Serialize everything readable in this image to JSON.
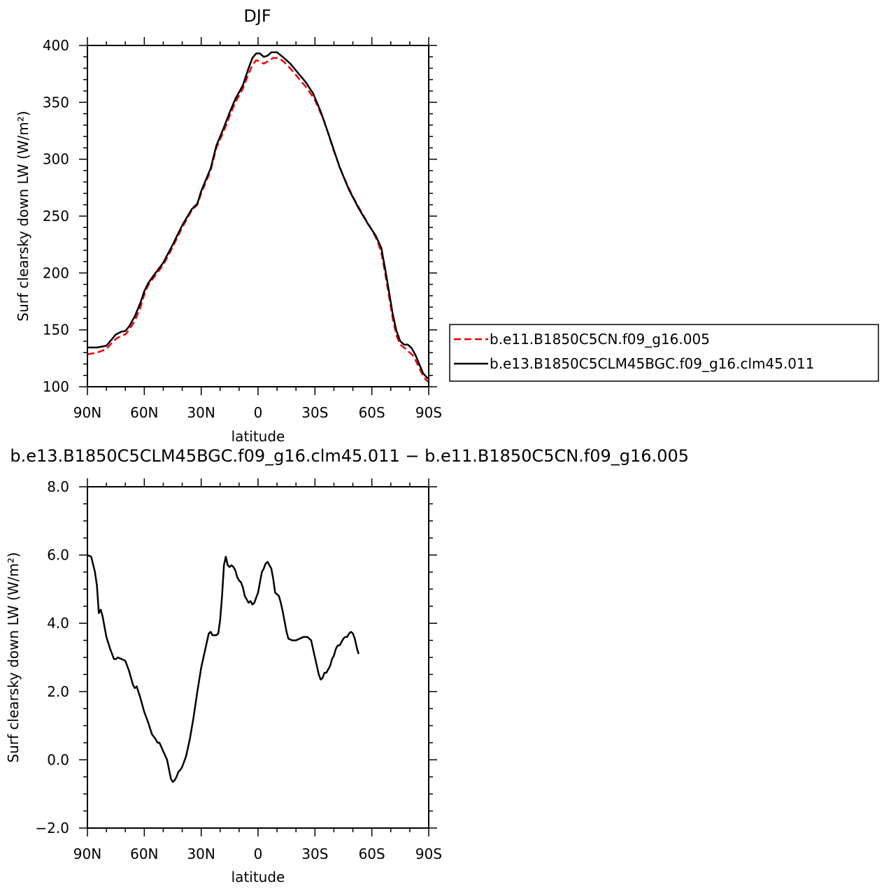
{
  "chart_data": [
    {
      "type": "line",
      "title": "DJF",
      "xlabel": "latitude",
      "ylabel": "Surf clearsky down LW (W/m²)",
      "xlim": [
        -90,
        90
      ],
      "ylim": [
        100,
        400
      ],
      "x_ticks": [
        {
          "value": -90,
          "label": "90N"
        },
        {
          "value": -60,
          "label": "60N"
        },
        {
          "value": -30,
          "label": "30N"
        },
        {
          "value": 0,
          "label": "0"
        },
        {
          "value": 30,
          "label": "30S"
        },
        {
          "value": 60,
          "label": "60S"
        },
        {
          "value": 90,
          "label": "90S"
        }
      ],
      "y_ticks": [
        {
          "value": 100,
          "label": "100"
        },
        {
          "value": 150,
          "label": "150"
        },
        {
          "value": 200,
          "label": "200"
        },
        {
          "value": 250,
          "label": "250"
        },
        {
          "value": 300,
          "label": "300"
        },
        {
          "value": 350,
          "label": "350"
        },
        {
          "value": 400,
          "label": "400"
        }
      ],
      "legend": {
        "placement": "right"
      },
      "series": [
        {
          "name": "b.e11.B1850C5CN.f09_g16.005",
          "color": "#ee0000",
          "dash": "dashed",
          "points": [
            [
              -90,
              128.5
            ],
            [
              -85,
              130
            ],
            [
              -80,
              133
            ],
            [
              -78,
              137
            ],
            [
              -75,
              142
            ],
            [
              -72,
              145
            ],
            [
              -70,
              146
            ],
            [
              -68,
              150
            ],
            [
              -65,
              158
            ],
            [
              -62,
              170
            ],
            [
              -60,
              181
            ],
            [
              -58,
              189
            ],
            [
              -55,
              196
            ],
            [
              -50,
              207
            ],
            [
              -45,
              223
            ],
            [
              -40,
              240
            ],
            [
              -35,
              255
            ],
            [
              -32,
              260
            ],
            [
              -30,
              270
            ],
            [
              -25,
              290
            ],
            [
              -22,
              310
            ],
            [
              -18,
              325
            ],
            [
              -15,
              338
            ],
            [
              -12,
              350
            ],
            [
              -8,
              362
            ],
            [
              -5,
              375
            ],
            [
              -3,
              383
            ],
            [
              -1,
              387
            ],
            [
              1,
              386
            ],
            [
              3,
              384
            ],
            [
              5,
              386
            ],
            [
              8,
              389
            ],
            [
              11,
              389
            ],
            [
              14,
              385
            ],
            [
              18,
              378
            ],
            [
              22,
              370
            ],
            [
              26,
              362
            ],
            [
              30,
              352
            ],
            [
              35,
              333
            ],
            [
              40,
              307
            ],
            [
              45,
              285
            ],
            [
              50,
              267
            ],
            [
              55,
              252
            ],
            [
              60,
              238
            ],
            [
              63,
              228
            ],
            [
              65,
              218
            ],
            [
              67,
              200
            ],
            [
              69,
              180
            ],
            [
              71,
              160
            ],
            [
              73,
              145
            ],
            [
              75,
              137
            ],
            [
              78,
              133
            ],
            [
              80,
              130
            ],
            [
              82,
              127
            ],
            [
              84,
              120
            ],
            [
              86,
              113
            ],
            [
              88,
              107
            ],
            [
              90,
              104
            ]
          ]
        },
        {
          "name": "b.e13.B1850C5CLM45BGC.f09_g16.clm45.011",
          "color": "#000000",
          "dash": "solid",
          "points": [
            [
              -90,
              134.5
            ],
            [
              -85,
              134.5
            ],
            [
              -80,
              136
            ],
            [
              -78,
              140
            ],
            [
              -75,
              146
            ],
            [
              -72,
              148.5
            ],
            [
              -70,
              149
            ],
            [
              -68,
              153
            ],
            [
              -65,
              162
            ],
            [
              -62,
              174
            ],
            [
              -60,
              184
            ],
            [
              -58,
              191
            ],
            [
              -55,
              198
            ],
            [
              -50,
              209
            ],
            [
              -45,
              225
            ],
            [
              -40,
              242
            ],
            [
              -35,
              256
            ],
            [
              -32,
              261
            ],
            [
              -30,
              272
            ],
            [
              -25,
              292
            ],
            [
              -22,
              312
            ],
            [
              -18,
              328
            ],
            [
              -15,
              341
            ],
            [
              -12,
              353
            ],
            [
              -8,
              365
            ],
            [
              -5,
              380
            ],
            [
              -3,
              389
            ],
            [
              -1,
              393
            ],
            [
              1,
              393
            ],
            [
              3,
              390
            ],
            [
              5,
              391
            ],
            [
              7,
              394
            ],
            [
              10,
              394
            ],
            [
              13,
              390
            ],
            [
              17,
              384
            ],
            [
              21,
              376
            ],
            [
              25,
              368
            ],
            [
              29,
              358
            ],
            [
              33,
              342
            ],
            [
              38,
              318
            ],
            [
              43,
              293
            ],
            [
              48,
              273
            ],
            [
              53,
              257
            ],
            [
              58,
              243
            ],
            [
              62,
              233
            ],
            [
              65,
              222
            ],
            [
              67,
              204
            ],
            [
              69,
              184
            ],
            [
              71,
              164
            ],
            [
              73,
              149
            ],
            [
              75,
              140
            ],
            [
              77,
              137
            ],
            [
              79,
              137
            ],
            [
              81,
              134
            ],
            [
              83,
              128
            ],
            [
              85,
              120
            ],
            [
              87,
              112
            ],
            [
              89,
              108
            ],
            [
              90,
              107
            ]
          ]
        }
      ]
    },
    {
      "type": "line",
      "title": "b.e13.B1850C5CLM45BGC.f09_g16.clm45.011 − b.e11.B1850C5CN.f09_g16.005",
      "xlabel": "latitude",
      "ylabel": "Surf clearsky down LW (W/m²)",
      "xlim": [
        -90,
        90
      ],
      "ylim": [
        -2.0,
        8.0
      ],
      "x_ticks": [
        {
          "value": -90,
          "label": "90N"
        },
        {
          "value": -60,
          "label": "60N"
        },
        {
          "value": -30,
          "label": "30N"
        },
        {
          "value": 0,
          "label": "0"
        },
        {
          "value": 30,
          "label": "30S"
        },
        {
          "value": 60,
          "label": "60S"
        },
        {
          "value": 90,
          "label": "90S"
        }
      ],
      "y_ticks": [
        {
          "value": -2.0,
          "label": "−2.0"
        },
        {
          "value": 0.0,
          "label": "0.0"
        },
        {
          "value": 2.0,
          "label": "2.0"
        },
        {
          "value": 4.0,
          "label": "4.0"
        },
        {
          "value": 6.0,
          "label": "6.0"
        },
        {
          "value": 8.0,
          "label": "8.0"
        }
      ],
      "series": [
        {
          "color": "#000000",
          "dash": "solid",
          "points": [
            [
              -90,
              6.0
            ],
            [
              -88,
              5.95
            ],
            [
              -86,
              5.5
            ],
            [
              -85,
              5.1
            ],
            [
              -84,
              4.3
            ],
            [
              -83,
              4.4
            ],
            [
              -82,
              4.2
            ],
            [
              -80,
              3.6
            ],
            [
              -78,
              3.25
            ],
            [
              -76,
              2.95
            ],
            [
              -75,
              2.95
            ],
            [
              -74,
              3.0
            ],
            [
              -72,
              2.95
            ],
            [
              -70,
              2.9
            ],
            [
              -68,
              2.6
            ],
            [
              -66,
              2.2
            ],
            [
              -65,
              2.1
            ],
            [
              -64,
              2.15
            ],
            [
              -62,
              1.8
            ],
            [
              -60,
              1.4
            ],
            [
              -58,
              1.1
            ],
            [
              -56,
              0.75
            ],
            [
              -54,
              0.6
            ],
            [
              -53,
              0.5
            ],
            [
              -52,
              0.5
            ],
            [
              -50,
              0.25
            ],
            [
              -48,
              0.0
            ],
            [
              -46,
              -0.55
            ],
            [
              -45,
              -0.65
            ],
            [
              -44,
              -0.6
            ],
            [
              -43,
              -0.5
            ],
            [
              -42,
              -0.35
            ],
            [
              -41,
              -0.3
            ],
            [
              -40,
              -0.2
            ],
            [
              -38,
              0.1
            ],
            [
              -36,
              0.6
            ],
            [
              -34,
              1.25
            ],
            [
              -32,
              2.0
            ],
            [
              -30,
              2.7
            ],
            [
              -28,
              3.2
            ],
            [
              -26,
              3.7
            ],
            [
              -25,
              3.75
            ],
            [
              -24,
              3.65
            ],
            [
              -22,
              3.65
            ],
            [
              -21,
              3.7
            ],
            [
              -20,
              4.1
            ],
            [
              -19,
              4.8
            ],
            [
              -18,
              5.7
            ],
            [
              -17,
              5.95
            ],
            [
              -16,
              5.7
            ],
            [
              -15,
              5.65
            ],
            [
              -14,
              5.7
            ],
            [
              -13,
              5.65
            ],
            [
              -12,
              5.55
            ],
            [
              -11,
              5.35
            ],
            [
              -10,
              5.25
            ],
            [
              -9,
              5.2
            ],
            [
              -8,
              5.05
            ],
            [
              -7,
              4.8
            ],
            [
              -6,
              4.7
            ],
            [
              -5,
              4.6
            ],
            [
              -4,
              4.65
            ],
            [
              -3,
              4.55
            ],
            [
              -2,
              4.6
            ],
            [
              -1,
              4.75
            ],
            [
              0,
              4.9
            ],
            [
              1,
              5.2
            ],
            [
              2,
              5.5
            ],
            [
              3,
              5.6
            ],
            [
              4,
              5.75
            ],
            [
              5,
              5.8
            ],
            [
              6,
              5.7
            ],
            [
              7,
              5.6
            ],
            [
              8,
              5.3
            ],
            [
              9,
              4.9
            ],
            [
              10,
              4.85
            ],
            [
              11,
              4.8
            ],
            [
              12,
              4.6
            ],
            [
              13,
              4.35
            ],
            [
              14,
              4.05
            ],
            [
              15,
              3.75
            ],
            [
              16,
              3.55
            ],
            [
              18,
              3.5
            ],
            [
              20,
              3.5
            ],
            [
              22,
              3.55
            ],
            [
              24,
              3.6
            ],
            [
              26,
              3.6
            ],
            [
              28,
              3.5
            ],
            [
              30,
              3.0
            ],
            [
              32,
              2.5
            ],
            [
              33,
              2.35
            ],
            [
              34,
              2.4
            ],
            [
              35,
              2.55
            ],
            [
              36,
              2.55
            ],
            [
              38,
              2.75
            ],
            [
              39,
              2.95
            ],
            [
              40,
              3.05
            ],
            [
              41,
              3.25
            ],
            [
              42,
              3.35
            ],
            [
              43,
              3.35
            ],
            [
              44,
              3.45
            ],
            [
              45,
              3.55
            ],
            [
              46,
              3.6
            ],
            [
              47,
              3.6
            ],
            [
              48,
              3.7
            ],
            [
              49,
              3.75
            ],
            [
              50,
              3.7
            ],
            [
              51,
              3.55
            ],
            [
              52,
              3.3
            ],
            [
              53,
              3.1
            ]
          ]
        }
      ]
    }
  ]
}
